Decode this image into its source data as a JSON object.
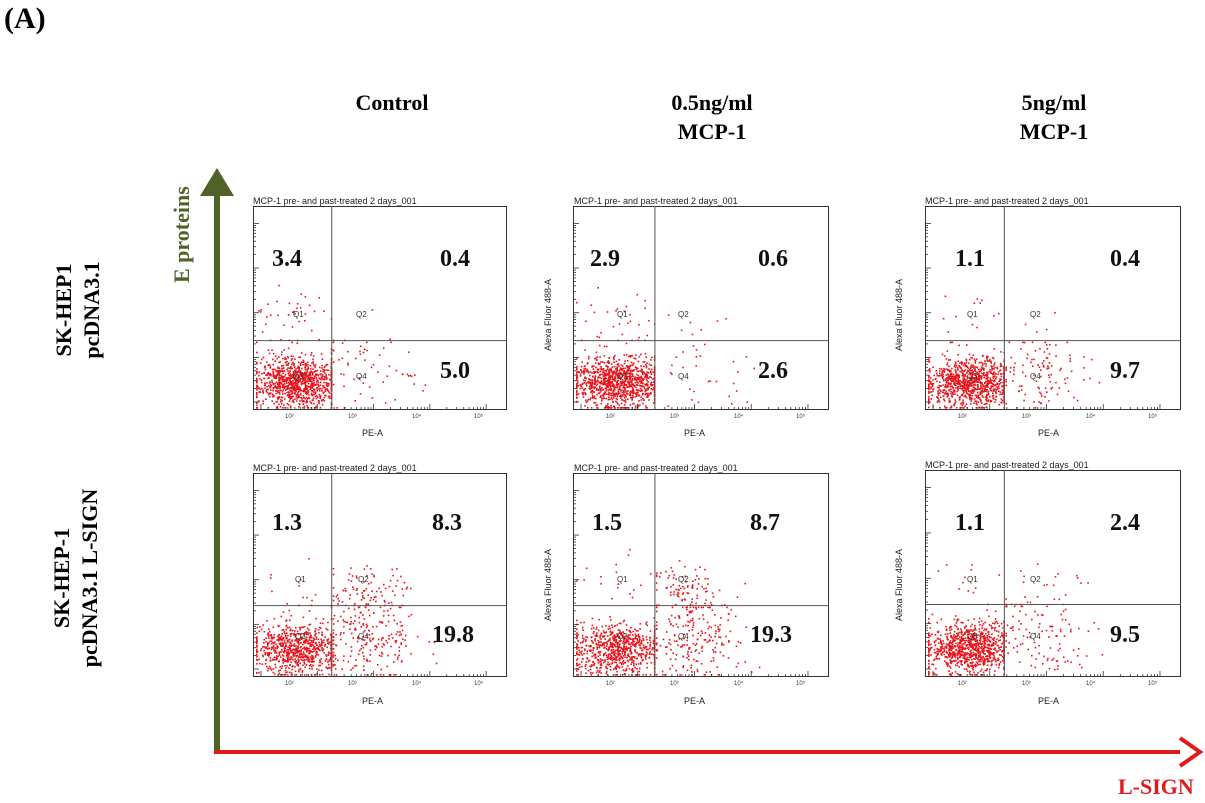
{
  "figure": {
    "panel_label": "(A)",
    "columns": [
      {
        "line1": "Control",
        "line2": ""
      },
      {
        "line1": "0.5ng/ml",
        "line2": "MCP-1"
      },
      {
        "line1": "5ng/ml",
        "line2": "MCP-1"
      }
    ],
    "rows": [
      {
        "line1": "SK-HEP1",
        "line2": "pcDNA3.1"
      },
      {
        "line1": "SK-HEP-1",
        "line2": "pcDNA3.1 L-SIGN"
      }
    ],
    "y_axis_label": "E proteins",
    "x_axis_label": "L-SIGN",
    "colors": {
      "y_arrow": "#4f6228",
      "x_arrow": "#e31a1c",
      "dots": "#e8141c"
    }
  },
  "chart_data": [
    {
      "type": "scatter",
      "title": "MCP-1 pre- and past-treated 2 days_001",
      "xlabel": "PE-A",
      "ylabel": "",
      "row": 0,
      "col": 0,
      "quadrants": {
        "Q1": 3.4,
        "Q2": 0.4,
        "Q4": 5.0
      }
    },
    {
      "type": "scatter",
      "title": "MCP-1 pre- and past-treated 2 days_001",
      "xlabel": "PE-A",
      "ylabel": "Alexa Fluor 488-A",
      "row": 0,
      "col": 1,
      "quadrants": {
        "Q1": 2.9,
        "Q2": 0.6,
        "Q4": 2.6
      }
    },
    {
      "type": "scatter",
      "title": "MCP-1 pre- and past-treated 2 days_001",
      "xlabel": "PE-A",
      "ylabel": "Alexa Fluor 488-A",
      "row": 0,
      "col": 2,
      "quadrants": {
        "Q1": 1.1,
        "Q2": 0.4,
        "Q4": 9.7
      }
    },
    {
      "type": "scatter",
      "title": "MCP-1 pre- and past-treated 2 days_001",
      "xlabel": "PE-A",
      "ylabel": "",
      "row": 1,
      "col": 0,
      "quadrants": {
        "Q1": 1.3,
        "Q2": 8.3,
        "Q4": 19.8
      }
    },
    {
      "type": "scatter",
      "title": "MCP-1 pre- and past-treated 2 days_001",
      "xlabel": "PE-A",
      "ylabel": "Alexa Fluor 488-A",
      "row": 1,
      "col": 1,
      "quadrants": {
        "Q1": 1.5,
        "Q2": 8.7,
        "Q4": 19.3
      }
    },
    {
      "type": "scatter",
      "title": "MCP-1 pre- and past-treated 2 days_001",
      "xlabel": "PE-A",
      "ylabel": "Alexa Fluor 488-A",
      "row": 1,
      "col": 2,
      "quadrants": {
        "Q1": 1.1,
        "Q2": 2.4,
        "Q4": 9.5
      }
    }
  ],
  "quadrant_names": {
    "q1": "Q1",
    "q2": "Q2",
    "q3": "Q3",
    "q4": "Q4"
  },
  "x_ticks": [
    "10²",
    "10³",
    "10⁴",
    "10⁵"
  ]
}
